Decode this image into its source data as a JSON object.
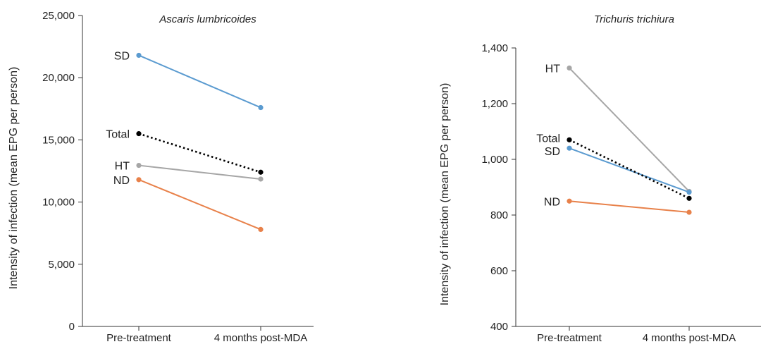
{
  "chart_data": [
    {
      "type": "line",
      "title": "Ascaris lumbricoides",
      "ylabel": "Intensity of infection (mean EPG per person)",
      "categories": [
        "Pre-treatment",
        "4 months post-MDA"
      ],
      "ylim": [
        0,
        25000
      ],
      "yticks": [
        0,
        5000,
        10000,
        15000,
        20000,
        25000
      ],
      "ytick_labels": [
        "0",
        "5,000",
        "10,000",
        "15,000",
        "20,000",
        "25,000"
      ],
      "series": [
        {
          "name": "SD",
          "values": [
            21800,
            17600
          ],
          "color": "#5b9bd0",
          "style": "solid"
        },
        {
          "name": "Total",
          "values": [
            15500,
            12400
          ],
          "color": "#000000",
          "style": "dotted"
        },
        {
          "name": "HT",
          "values": [
            12950,
            11850
          ],
          "color": "#a6a6a6",
          "style": "solid"
        },
        {
          "name": "ND",
          "values": [
            11800,
            7800
          ],
          "color": "#e8814a",
          "style": "solid"
        }
      ]
    },
    {
      "type": "line",
      "title": "Trichuris trichiura",
      "ylabel": "Intensity of infection (mean EPG per person)",
      "categories": [
        "Pre-treatment",
        "4 months post-MDA"
      ],
      "ylim": [
        400,
        1400
      ],
      "yticks": [
        400,
        600,
        800,
        1000,
        1200,
        1400
      ],
      "ytick_labels": [
        "400",
        "600",
        "800",
        "1,000",
        "1,200",
        "1,400"
      ],
      "series": [
        {
          "name": "HT",
          "values": [
            1328,
            885
          ],
          "color": "#a6a6a6",
          "style": "solid"
        },
        {
          "name": "Total",
          "values": [
            1070,
            860
          ],
          "color": "#000000",
          "style": "dotted"
        },
        {
          "name": "SD",
          "values": [
            1040,
            882
          ],
          "color": "#5b9bd0",
          "style": "solid"
        },
        {
          "name": "ND",
          "values": [
            850,
            810
          ],
          "color": "#e8814a",
          "style": "solid"
        }
      ]
    }
  ]
}
